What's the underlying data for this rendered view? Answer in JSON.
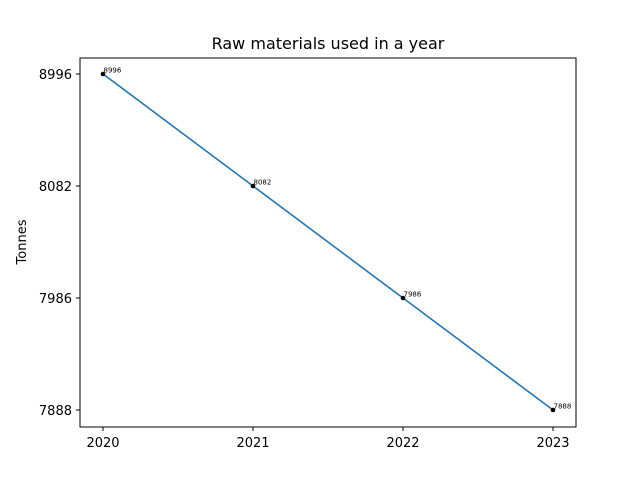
{
  "chart_data": {
    "type": "line",
    "title": "Raw materials used in a year",
    "xlabel": "",
    "ylabel": "Tonnes",
    "categories": [
      "2020",
      "2021",
      "2022",
      "2023"
    ],
    "y_tick_labels": [
      "8996",
      "8082",
      "7986",
      "7888"
    ],
    "series": [
      {
        "values": [
          8996,
          8082,
          7986,
          7888
        ],
        "color": "#1f77b4"
      }
    ],
    "data_labels": [
      "8996",
      "8082",
      "7986",
      "7888"
    ],
    "grid": false,
    "legend": "none"
  }
}
